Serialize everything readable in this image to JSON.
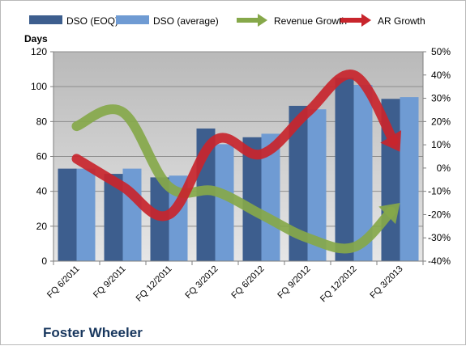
{
  "chart_data": {
    "type": "bar",
    "title": "Foster Wheeler",
    "ylabel": "Days",
    "ylim": [
      0,
      120
    ],
    "y_ticks": [
      0,
      20,
      40,
      60,
      80,
      100,
      120
    ],
    "y2lim": [
      -40,
      50
    ],
    "y2_ticks": [
      "-40%",
      "-30%",
      "-20%",
      "-10%",
      "0%",
      "10%",
      "20%",
      "30%",
      "40%",
      "50%"
    ],
    "y2_tick_values": [
      -40,
      -30,
      -20,
      -10,
      0,
      10,
      20,
      30,
      40,
      50
    ],
    "categories": [
      "FQ 6/2011",
      "FQ 9/2011",
      "FQ 12/2011",
      "FQ 3/2012",
      "FQ 6/2012",
      "FQ 9/2012",
      "FQ 12/2012",
      "FQ 3/2013"
    ],
    "legend_position": "top",
    "grid": true,
    "series": [
      {
        "name": "DSO (EOQ)",
        "type": "bar",
        "axis": "left",
        "color": "#3d5e8e",
        "values": [
          53,
          50,
          48,
          76,
          71,
          89,
          105,
          93
        ]
      },
      {
        "name": "DSO (average)",
        "type": "bar",
        "axis": "left",
        "color": "#6f9bd3",
        "values": [
          53,
          53,
          49,
          67,
          73,
          87,
          101,
          94
        ]
      },
      {
        "name": "Revenue Growth",
        "type": "line",
        "axis": "right",
        "color": "#86a84a",
        "values": [
          18,
          24,
          -8,
          -10,
          -20,
          -30,
          -34,
          -15
        ]
      },
      {
        "name": "AR Growth",
        "type": "line",
        "axis": "right",
        "color": "#c8252c",
        "values": [
          4,
          -8,
          -20,
          12,
          6,
          24,
          40,
          7
        ]
      }
    ]
  }
}
